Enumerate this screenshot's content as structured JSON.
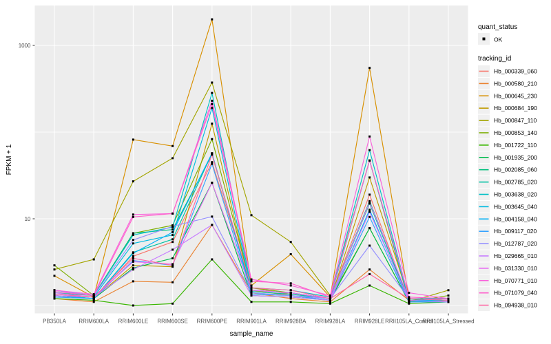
{
  "chart_data": {
    "type": "line",
    "title": "",
    "xlabel": "sample_name",
    "ylabel": "FPKM + 1",
    "y_scale": "log10",
    "ylim": [
      0.8,
      2800
    ],
    "grid": true,
    "legend_position": "right",
    "y_ticks": [
      {
        "label": "1000",
        "value": 1000
      },
      {
        "label": "10",
        "value": 10
      }
    ],
    "y_minor_gridlines": [
      1,
      100
    ],
    "categories": [
      "PB350LA",
      "RRIM600LA",
      "RRIM600LE",
      "RRIM600SE",
      "RRIM600PE",
      "RRIM901LA",
      "RRIM928BA",
      "RRIM928LA",
      "RRIM928LE",
      "RRII105LA_Control",
      "RRII105LA_Stressed"
    ],
    "legend": {
      "quant_status_title": "quant_status",
      "ok_label": "OK",
      "tracking_title": "tracking_id"
    },
    "point_color": "#000000",
    "series": [
      {
        "name": "Hb_000339_060",
        "color": "#F8766D",
        "values": [
          1.3,
          1.2,
          3.7,
          5.4,
          45,
          1.6,
          1.35,
          1.2,
          19,
          1.1,
          1.1
        ]
      },
      {
        "name": "Hb_000580_210",
        "color": "#EA8331",
        "values": [
          1.2,
          1.1,
          1.9,
          1.85,
          8.5,
          1.4,
          1.2,
          1.1,
          2.6,
          1.15,
          1.1
        ]
      },
      {
        "name": "Hb_000645_230",
        "color": "#D89000",
        "values": [
          2.2,
          1.25,
          82,
          69,
          2000,
          1.7,
          3.9,
          1.25,
          550,
          1.2,
          1.15
        ]
      },
      {
        "name": "Hb_000684_190",
        "color": "#C09B00",
        "values": [
          1.3,
          1.2,
          2.9,
          2.8,
          125,
          1.5,
          1.3,
          1.15,
          30,
          1.2,
          1.1
        ]
      },
      {
        "name": "Hb_000847_110",
        "color": "#A3A500",
        "values": [
          2.6,
          3.4,
          27,
          50,
          373,
          11,
          5.4,
          1.3,
          47,
          1.1,
          1.5
        ]
      },
      {
        "name": "Hb_000853_140",
        "color": "#7CAE00",
        "values": [
          2.9,
          1.3,
          6.8,
          8.4,
          83,
          1.6,
          1.4,
          1.2,
          7.8,
          1.1,
          1.3
        ]
      },
      {
        "name": "Hb_001722_110",
        "color": "#39B600",
        "values": [
          1.2,
          1.15,
          1.0,
          1.05,
          3.4,
          1.1,
          1.1,
          1.05,
          1.7,
          1.05,
          1.1
        ]
      },
      {
        "name": "Hb_001935_200",
        "color": "#00BB4E",
        "values": [
          1.3,
          1.2,
          2.7,
          3.5,
          26,
          1.3,
          1.25,
          1.15,
          7.8,
          1.1,
          1.15
        ]
      },
      {
        "name": "Hb_002085_060",
        "color": "#00BF7D",
        "values": [
          1.4,
          1.3,
          6.8,
          7.5,
          55,
          1.5,
          1.4,
          1.2,
          16,
          1.15,
          1.2
        ]
      },
      {
        "name": "Hb_002785_020",
        "color": "#00C1A3",
        "values": [
          1.3,
          1.2,
          4.1,
          5.8,
          57,
          1.45,
          1.35,
          1.2,
          15,
          1.1,
          1.15
        ]
      },
      {
        "name": "Hb_003638_020",
        "color": "#00BFC4",
        "values": [
          1.5,
          1.3,
          6.5,
          8.0,
          283,
          1.6,
          1.5,
          1.25,
          62,
          1.2,
          1.2
        ]
      },
      {
        "name": "Hb_003645_040",
        "color": "#00BAE0",
        "values": [
          1.35,
          1.25,
          5.2,
          6.5,
          190,
          1.5,
          1.4,
          1.2,
          47,
          1.15,
          1.15
        ]
      },
      {
        "name": "Hb_004158_040",
        "color": "#00B0F6",
        "values": [
          1.3,
          1.2,
          4.0,
          7.0,
          57,
          1.4,
          1.3,
          1.15,
          12.7,
          1.1,
          1.1
        ]
      },
      {
        "name": "Hb_009117_020",
        "color": "#35A2FF",
        "values": [
          1.25,
          1.2,
          3.3,
          2.9,
          43,
          1.35,
          1.3,
          1.15,
          10.5,
          1.1,
          1.1
        ]
      },
      {
        "name": "Hb_012787_020",
        "color": "#9590FF",
        "values": [
          1.5,
          1.3,
          5.7,
          8.2,
          10.6,
          1.4,
          1.3,
          1.2,
          4.9,
          1.2,
          1.15
        ]
      },
      {
        "name": "Hb_029665_010",
        "color": "#C77CFF",
        "values": [
          1.4,
          1.25,
          2.6,
          4.4,
          8.5,
          1.3,
          1.25,
          1.15,
          12,
          1.15,
          1.1
        ]
      },
      {
        "name": "Hb_031330_010",
        "color": "#E76BF3",
        "values": [
          1.3,
          1.25,
          3.2,
          3.0,
          26,
          1.5,
          1.4,
          1.2,
          15.5,
          1.2,
          1.15
        ]
      },
      {
        "name": "Hb_070771_010",
        "color": "#FA62DB",
        "values": [
          1.5,
          1.35,
          11.2,
          11.5,
          230,
          2.0,
          1.7,
          1.3,
          89,
          1.4,
          1.2
        ]
      },
      {
        "name": "Hb_071079_040",
        "color": "#FF61CC",
        "values": [
          1.45,
          1.3,
          10.5,
          11.5,
          210,
          1.9,
          1.8,
          1.25,
          47,
          1.25,
          1.2
        ]
      },
      {
        "name": "Hb_094938_010",
        "color": "#FF67A4",
        "values": [
          1.35,
          1.25,
          3.5,
          2.9,
          55,
          1.6,
          1.5,
          1.2,
          2.3,
          1.2,
          1.15
        ]
      }
    ],
    "panel_bg": "#EDEDED",
    "gridline_color": "#FFFFFF",
    "tick_label_color": "#4D4D4D",
    "legend_key_bg": "#F0F0F0"
  }
}
